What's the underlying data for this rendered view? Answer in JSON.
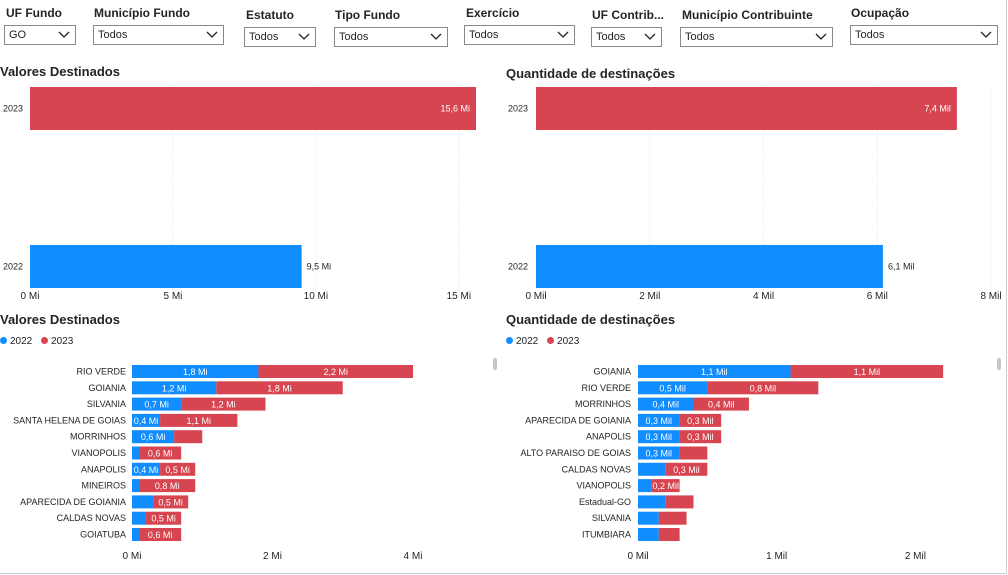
{
  "filters": [
    {
      "label": "UF Fundo",
      "value": "GO"
    },
    {
      "label": "Município Fundo",
      "value": "Todos"
    },
    {
      "label": "Estatuto",
      "value": "Todos"
    },
    {
      "label": "Tipo Fundo",
      "value": "Todos"
    },
    {
      "label": "Exercício",
      "value": "Todos"
    },
    {
      "label": "UF Contrib...",
      "value": "Todos"
    },
    {
      "label": "Município Contribuinte",
      "value": "Todos"
    },
    {
      "label": "Ocupação",
      "value": "Todos"
    }
  ],
  "colors": {
    "y2022": "#118DFF",
    "y2023": "#D64550",
    "grid": "#e1e1e1"
  },
  "panels": {
    "valores_anual": {
      "title": "Valores Destinados"
    },
    "quantidade_anual": {
      "title": "Quantidade de destinações"
    },
    "valores_municipio": {
      "title": "Valores Destinados"
    },
    "quantidade_municipio": {
      "title": "Quantidade de destinações"
    }
  },
  "legend": {
    "y2022": "2022",
    "y2023": "2023"
  },
  "chart_data": [
    {
      "type": "bar",
      "orientation": "horizontal",
      "title": "Valores Destinados",
      "categories": [
        "2023",
        "2022"
      ],
      "values": [
        15.6,
        9.5
      ],
      "value_labels": [
        "15,6 Mi",
        "9,5 Mi"
      ],
      "colors": [
        "#D64550",
        "#118DFF"
      ],
      "xlim": [
        0,
        15.6
      ],
      "ticks": [
        0,
        5,
        10,
        15
      ],
      "tick_labels": [
        "0 Mi",
        "5 Mi",
        "10 Mi",
        "15 Mi"
      ],
      "grid": true
    },
    {
      "type": "bar",
      "orientation": "horizontal",
      "title": "Quantidade de destinações",
      "categories": [
        "2023",
        "2022"
      ],
      "values": [
        7.4,
        6.1
      ],
      "value_labels": [
        "7,4 Mil",
        "6,1 Mil"
      ],
      "colors": [
        "#D64550",
        "#118DFF"
      ],
      "xlim": [
        0,
        8
      ],
      "ticks": [
        0,
        2,
        4,
        6,
        8
      ],
      "tick_labels": [
        "0 Mil",
        "2 Mil",
        "4 Mil",
        "6 Mil",
        "8 Mil"
      ],
      "grid": true
    },
    {
      "type": "bar",
      "orientation": "horizontal",
      "stacked": true,
      "title": "Valores Destinados",
      "legend_position": "top-left",
      "categories": [
        "RIO VERDE",
        "GOIANIA",
        "SILVANIA",
        "SANTA HELENA DE GOIAS",
        "MORRINHOS",
        "VIANOPOLIS",
        "ANAPOLIS",
        "MINEIROS",
        "APARECIDA DE GOIANIA",
        "CALDAS NOVAS",
        "GOIATUBA"
      ],
      "series": [
        {
          "name": "2022",
          "values": [
            1.8,
            1.2,
            0.7,
            0.4,
            0.6,
            0.1,
            0.4,
            0.1,
            0.3,
            0.2,
            0.1
          ],
          "labels": [
            "1,8 Mi",
            "1,2 Mi",
            "0,7 Mi",
            "0,4 Mi",
            "0,6 Mi",
            "",
            "0,4 Mi",
            "",
            "",
            "",
            ""
          ]
        },
        {
          "name": "2023",
          "values": [
            2.2,
            1.8,
            1.2,
            1.1,
            0.4,
            0.6,
            0.5,
            0.8,
            0.5,
            0.5,
            0.6
          ],
          "labels": [
            "2,2 Mi",
            "1,8 Mi",
            "1,2 Mi",
            "1,1 Mi",
            "",
            "0,6 Mi",
            "0,5 Mi",
            "0,8 Mi",
            "0,5 Mi",
            "0,5 Mi",
            "0,6 Mi"
          ]
        }
      ],
      "xlim": [
        0,
        4
      ],
      "ticks": [
        0,
        2,
        4
      ],
      "tick_labels": [
        "0 Mi",
        "2 Mi",
        "4 Mi"
      ]
    },
    {
      "type": "bar",
      "orientation": "horizontal",
      "stacked": true,
      "title": "Quantidade de destinações",
      "legend_position": "top-left",
      "categories": [
        "GOIANIA",
        "RIO VERDE",
        "MORRINHOS",
        "APARECIDA DE GOIANIA",
        "ANAPOLIS",
        "ALTO PARAISO DE GOIAS",
        "CALDAS NOVAS",
        "VIANOPOLIS",
        "Estadual-GO",
        "SILVANIA",
        "ITUMBIARA"
      ],
      "series": [
        {
          "name": "2022",
          "values": [
            1.1,
            0.5,
            0.4,
            0.3,
            0.3,
            0.3,
            0.2,
            0.1,
            0.2,
            0.15,
            0.15
          ],
          "labels": [
            "1,1 Mil",
            "0,5 Mil",
            "0,4 Mil",
            "0,3 Mil",
            "0,3 Mil",
            "0,3 Mil",
            "",
            "",
            "",
            "",
            ""
          ]
        },
        {
          "name": "2023",
          "values": [
            1.1,
            0.8,
            0.4,
            0.3,
            0.3,
            0.2,
            0.3,
            0.2,
            0.2,
            0.2,
            0.15
          ],
          "labels": [
            "1,1 Mil",
            "0,8 Mil",
            "0,4 Mil",
            "0,3 Mil",
            "0,3 Mil",
            "",
            "0,3 Mil",
            "0,2 Mil",
            "",
            "",
            ""
          ]
        }
      ],
      "xlim": [
        0,
        2.3
      ],
      "ticks": [
        0,
        1,
        2
      ],
      "tick_labels": [
        "0 Mil",
        "1 Mil",
        "2 Mil"
      ]
    }
  ]
}
